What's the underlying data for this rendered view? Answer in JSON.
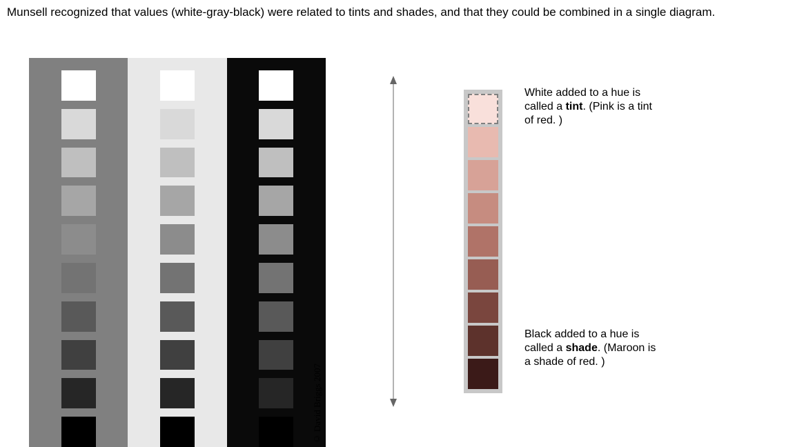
{
  "title": "Munsell recognized that values (white-gray-black) were related to tints and shades, and that they could be combined in a single diagram.",
  "credit": "© David Briggs 2007",
  "value_columns": {
    "bg": [
      "#808080",
      "#e8e8e8",
      "#0a0a0a"
    ],
    "swatches": [
      "#ffffff",
      "#d9d9d9",
      "#bfbfbf",
      "#a6a6a6",
      "#8c8c8c",
      "#737373",
      "#595959",
      "#404040",
      "#262626",
      "#000000"
    ]
  },
  "tint_column": {
    "bg": "#c8c8c8",
    "swatches": [
      {
        "c": "#f9e0db",
        "dashed": true
      },
      {
        "c": "#e8bab0",
        "dashed": false
      },
      {
        "c": "#d7a297",
        "dashed": false
      },
      {
        "c": "#c68c80",
        "dashed": false
      },
      {
        "c": "#b07368",
        "dashed": false
      },
      {
        "c": "#975d53",
        "dashed": false
      },
      {
        "c": "#7a463e",
        "dashed": false
      },
      {
        "c": "#5d322c",
        "dashed": false
      },
      {
        "c": "#3b1a18",
        "dashed": false
      }
    ]
  },
  "arrow_color": "#666666",
  "tint_label": {
    "pre": "White added to a hue is called a ",
    "bold": "tint",
    "post": ".  (Pink is a tint of red. )"
  },
  "shade_label": {
    "pre": "Black added to a hue is called a ",
    "bold": "shade",
    "post": ". (Maroon is a shade of red. )"
  }
}
